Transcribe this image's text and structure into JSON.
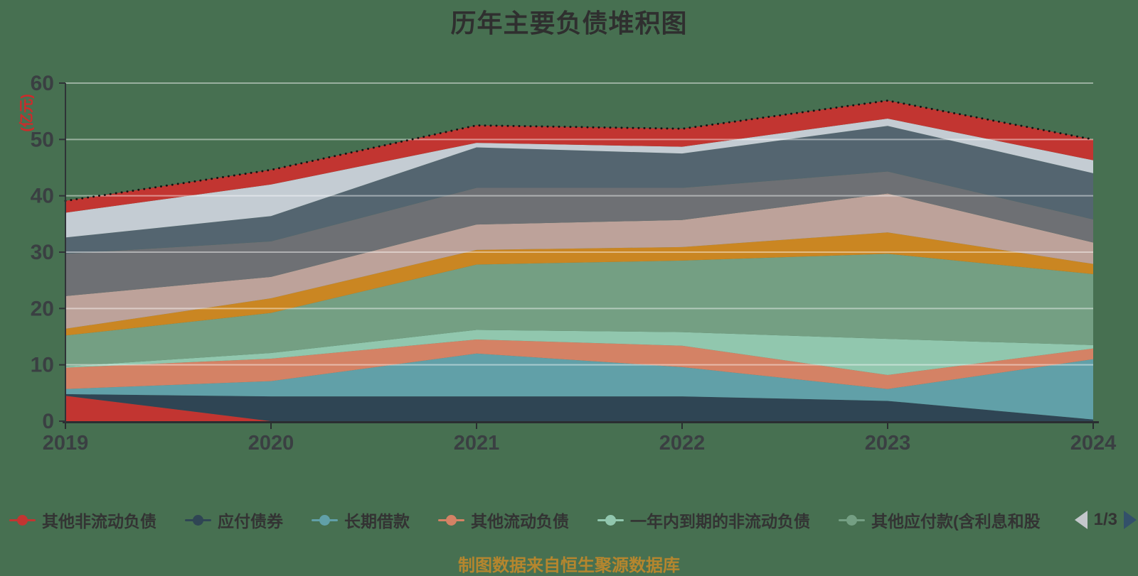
{
  "title": "历年主要负债堆积图",
  "y_axis_name": "(亿元)",
  "y_axis_name_color": "#cc2b2b",
  "legend": {
    "pager": {
      "label": "1/3",
      "prev_enabled": false,
      "next_enabled": true
    }
  },
  "caption": {
    "text": "制图数据来自恒生聚源数据库",
    "color": "#b5862e"
  },
  "chart_data": {
    "type": "area",
    "stacked": true,
    "title": "历年主要负债堆积图",
    "x_labels": [
      "2019",
      "2020",
      "2021",
      "2022",
      "2023",
      "2024"
    ],
    "y_ticks": [
      0,
      10,
      20,
      30,
      40,
      50,
      60
    ],
    "ylim": [
      0,
      60
    ],
    "unit": "亿元",
    "grid": true,
    "legend_position": "bottom",
    "total_dotted_line": [
      39.1,
      44.6,
      52.5,
      51.9,
      56.9,
      50.0
    ],
    "series": [
      {
        "name": "其他非流动负债",
        "color": "#c23531",
        "in_legend": true,
        "values": [
          4.5,
          0.0,
          0.0,
          0.0,
          0.0,
          0.0
        ]
      },
      {
        "name": "应付债券",
        "color": "#2f4554",
        "in_legend": true,
        "values": [
          0.3,
          4.4,
          4.4,
          4.4,
          3.6,
          0.3
        ]
      },
      {
        "name": "长期借款",
        "color": "#61a0a8",
        "in_legend": true,
        "values": [
          0.9,
          2.7,
          7.6,
          5.2,
          2.1,
          10.7
        ]
      },
      {
        "name": "其他流动负债",
        "color": "#d48265",
        "in_legend": true,
        "values": [
          3.8,
          4.0,
          2.5,
          3.8,
          2.5,
          1.9
        ]
      },
      {
        "name": "一年内到期的非流动负债",
        "color": "#91c7ae",
        "in_legend": true,
        "values": [
          0.2,
          1.0,
          1.7,
          2.4,
          6.4,
          0.6
        ]
      },
      {
        "name": "其他应付款(含利息和股",
        "color": "#749f83",
        "in_legend": true,
        "values": [
          5.5,
          7.1,
          11.6,
          12.7,
          15.1,
          12.6
        ]
      },
      {
        "name": "",
        "color": "#ca8622",
        "in_legend": false,
        "values": [
          1.2,
          2.6,
          2.6,
          2.4,
          3.8,
          1.8
        ]
      },
      {
        "name": "",
        "color": "#bda29a",
        "in_legend": false,
        "values": [
          5.8,
          3.8,
          4.5,
          4.8,
          6.9,
          3.8
        ]
      },
      {
        "name": "",
        "color": "#6e7074",
        "in_legend": false,
        "values": [
          7.5,
          6.3,
          6.5,
          5.7,
          3.9,
          4.1
        ]
      },
      {
        "name": "",
        "color": "#546570",
        "in_legend": false,
        "values": [
          2.9,
          4.5,
          7.2,
          6.1,
          8.1,
          8.2
        ]
      },
      {
        "name": "",
        "color": "#c4ccd3",
        "in_legend": false,
        "values": [
          4.4,
          5.6,
          0.8,
          1.2,
          1.3,
          2.3
        ]
      },
      {
        "name": "",
        "color": "#c23531",
        "in_legend": false,
        "values": [
          2.1,
          2.6,
          3.1,
          3.2,
          3.2,
          3.7
        ]
      }
    ]
  }
}
